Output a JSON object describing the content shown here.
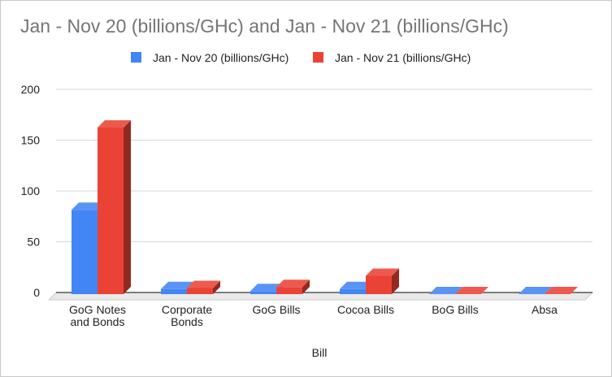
{
  "chart_data": {
    "type": "bar",
    "title": "Jan - Nov 20 (billions/GHc) and Jan - Nov 21 (billions/GHc)",
    "xlabel": "Bill",
    "ylabel": "",
    "categories": [
      "GoG Notes and Bonds",
      "Corporate Bonds",
      "GoG Bills",
      "Cocoa Bills",
      "BoG Bills",
      "Absa"
    ],
    "category_lines": [
      [
        "GoG Notes",
        "and Bonds"
      ],
      [
        "Corporate",
        "Bonds"
      ],
      [
        "GoG Bills"
      ],
      [
        "Cocoa Bills"
      ],
      [
        "BoG Bills"
      ],
      [
        "Absa"
      ]
    ],
    "series": [
      {
        "name": "Jan - Nov 20 (billions/GHc)",
        "color": "#4285f4",
        "values": [
          83,
          5,
          3,
          5,
          0,
          0
        ]
      },
      {
        "name": "Jan - Nov 21 (billions/GHc)",
        "color": "#ea4335",
        "values": [
          164,
          6,
          7,
          18,
          0,
          0
        ]
      }
    ],
    "ylim": [
      0,
      200
    ],
    "yticks": [
      0,
      50,
      100,
      150,
      200
    ],
    "grid": true,
    "legend": "top",
    "style": "3d-bar"
  }
}
